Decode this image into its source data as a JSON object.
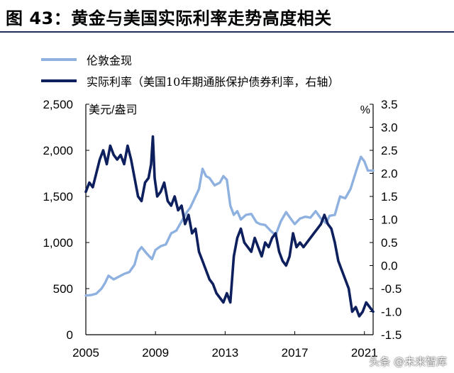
{
  "title": "图 43：黄金与美国实际利率走势高度相关",
  "legend": {
    "gold_label": "伦敦金现",
    "rate_label": "实际利率（美国10年期通胀保护债券利率，右轴）"
  },
  "watermark": "头条 @未来智库",
  "colors": {
    "gold": "#8fb1e0",
    "rate": "#0e1f5e",
    "title_rule": "#1f2f5a",
    "axis": "#000000"
  },
  "chart_data": {
    "type": "line",
    "left_axis_unit": "美元/盎司",
    "right_axis_unit": "%",
    "x_ticks": [
      2005,
      2009,
      2013,
      2017,
      "2021"
    ],
    "xlim": [
      2005,
      2021.5
    ],
    "y_left_ticks": [
      "0",
      "500",
      "1,000",
      "1,500",
      "2,000",
      "2,500"
    ],
    "y_left_lim": [
      0,
      2500
    ],
    "y_right_ticks": [
      "-1.5",
      "-1.0",
      "-0.5",
      "0.0",
      "0.5",
      "1.0",
      "1.5",
      "2.0",
      "2.5",
      "3.0",
      "3.5"
    ],
    "y_right_lim": [
      -1.5,
      3.5
    ],
    "series": [
      {
        "name": "伦敦金现",
        "axis": "left",
        "x": [
          2005.0,
          2005.3,
          2005.6,
          2005.9,
          2006.1,
          2006.3,
          2006.6,
          2006.9,
          2007.2,
          2007.5,
          2007.8,
          2008.0,
          2008.2,
          2008.5,
          2008.8,
          2009.0,
          2009.3,
          2009.6,
          2009.9,
          2010.2,
          2010.5,
          2010.8,
          2011.0,
          2011.3,
          2011.5,
          2011.7,
          2011.9,
          2012.1,
          2012.4,
          2012.7,
          2012.9,
          2013.1,
          2013.3,
          2013.5,
          2013.7,
          2013.9,
          2014.2,
          2014.5,
          2014.8,
          2015.0,
          2015.3,
          2015.6,
          2015.9,
          2016.2,
          2016.5,
          2016.8,
          2017.0,
          2017.3,
          2017.6,
          2017.9,
          2018.2,
          2018.5,
          2018.8,
          2019.0,
          2019.3,
          2019.6,
          2019.9,
          2020.2,
          2020.4,
          2020.6,
          2020.8,
          2021.0,
          2021.2,
          2021.5
        ],
        "values": [
          425,
          430,
          445,
          500,
          560,
          640,
          600,
          630,
          660,
          680,
          760,
          900,
          950,
          880,
          820,
          920,
          960,
          980,
          1100,
          1130,
          1230,
          1330,
          1380,
          1500,
          1580,
          1800,
          1720,
          1700,
          1620,
          1650,
          1720,
          1680,
          1400,
          1300,
          1340,
          1250,
          1300,
          1310,
          1220,
          1200,
          1190,
          1130,
          1080,
          1230,
          1330,
          1250,
          1200,
          1260,
          1280,
          1270,
          1340,
          1260,
          1210,
          1290,
          1300,
          1500,
          1480,
          1580,
          1700,
          1820,
          1930,
          1880,
          1780,
          1780
        ]
      },
      {
        "name": "实际利率（美国10年期通胀保护债券利率，右轴）",
        "axis": "right",
        "x": [
          2005.0,
          2005.2,
          2005.4,
          2005.6,
          2005.8,
          2006.0,
          2006.2,
          2006.4,
          2006.6,
          2006.8,
          2007.0,
          2007.2,
          2007.4,
          2007.6,
          2007.8,
          2008.0,
          2008.2,
          2008.4,
          2008.6,
          2008.75,
          2008.85,
          2008.95,
          2009.1,
          2009.3,
          2009.5,
          2009.7,
          2009.9,
          2010.1,
          2010.3,
          2010.5,
          2010.7,
          2010.9,
          2011.1,
          2011.3,
          2011.5,
          2011.7,
          2011.9,
          2012.1,
          2012.3,
          2012.5,
          2012.7,
          2012.9,
          2013.1,
          2013.3,
          2013.5,
          2013.7,
          2013.9,
          2014.1,
          2014.3,
          2014.5,
          2014.7,
          2014.9,
          2015.1,
          2015.3,
          2015.5,
          2015.7,
          2015.9,
          2016.1,
          2016.3,
          2016.5,
          2016.7,
          2016.9,
          2017.1,
          2017.3,
          2017.5,
          2017.7,
          2017.9,
          2018.1,
          2018.3,
          2018.5,
          2018.7,
          2018.9,
          2019.1,
          2019.3,
          2019.5,
          2019.7,
          2019.9,
          2020.1,
          2020.3,
          2020.5,
          2020.7,
          2020.9,
          2021.1,
          2021.3,
          2021.5
        ],
        "values": [
          1.6,
          1.8,
          1.7,
          2.0,
          2.3,
          2.5,
          2.2,
          2.6,
          2.4,
          2.3,
          2.4,
          2.2,
          2.6,
          2.3,
          1.9,
          1.5,
          1.4,
          1.8,
          1.9,
          2.2,
          2.8,
          1.9,
          1.5,
          1.6,
          1.8,
          1.4,
          1.3,
          1.5,
          1.2,
          1.3,
          0.9,
          1.1,
          0.7,
          0.8,
          0.3,
          0.1,
          -0.1,
          -0.3,
          -0.4,
          -0.6,
          -0.7,
          -0.8,
          -0.6,
          -0.8,
          0.2,
          0.6,
          0.8,
          0.5,
          0.4,
          0.3,
          0.6,
          0.4,
          0.2,
          0.5,
          0.4,
          0.6,
          0.7,
          0.3,
          0.1,
          0.0,
          0.2,
          0.7,
          0.4,
          0.5,
          0.4,
          0.5,
          0.6,
          0.7,
          0.8,
          0.9,
          1.1,
          0.9,
          0.8,
          0.5,
          0.1,
          -0.1,
          -0.3,
          -0.5,
          -1.0,
          -0.9,
          -1.1,
          -1.0,
          -0.8,
          -0.9,
          -1.0
        ]
      }
    ]
  }
}
